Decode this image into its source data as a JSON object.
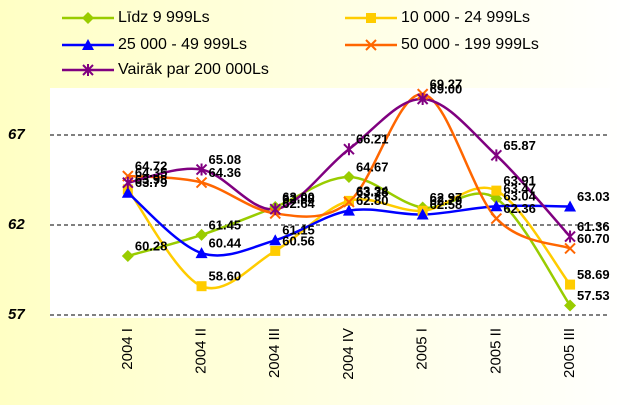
{
  "chart_data": {
    "type": "line",
    "categories": [
      "2004 I",
      "2004 II",
      "2004 III",
      "2004 IV",
      "2005 I",
      "2005 II",
      "2005 III"
    ],
    "ylim": [
      57,
      69.5
    ],
    "yticks": [
      57,
      62,
      67
    ],
    "grid": true,
    "smooth": true,
    "series": [
      {
        "name": "Līdz 9 999Ls",
        "color": "#99cc00",
        "marker": "diamond",
        "values": [
          60.28,
          61.45,
          63.0,
          64.67,
          62.97,
          63.47,
          57.53
        ],
        "value_labels": [
          "60.28",
          "61.45",
          "63.00",
          "64.67",
          "62.97",
          "63.47",
          "57.53"
        ]
      },
      {
        "name": "10 000 - 24 999Ls",
        "color": "#ffcc00",
        "marker": "square",
        "values": [
          63.98,
          58.6,
          60.56,
          63.34,
          62.79,
          63.91,
          58.69
        ],
        "value_labels": [
          "63.98",
          "58.60",
          "60.56",
          "63.34",
          "62.79",
          "63.91",
          "58.69"
        ]
      },
      {
        "name": "25 000 - 49 999Ls",
        "color": "#0000ff",
        "marker": "triangle",
        "values": [
          63.79,
          60.44,
          61.15,
          62.8,
          62.58,
          63.04,
          63.03
        ],
        "value_labels": [
          "63.79",
          "60.44",
          "61.15",
          "62.80",
          "62.58",
          "63.04",
          "63.03"
        ]
      },
      {
        "name": "50 000 - 199 999Ls",
        "color": "#ff6600",
        "marker": "x",
        "values": [
          64.72,
          64.36,
          62.64,
          63.28,
          69.27,
          62.36,
          60.7
        ],
        "value_labels": [
          "64.72",
          "64.36",
          "62.64",
          "63.28",
          "69.27",
          "62.36",
          "60.70"
        ]
      },
      {
        "name": "Vairāk par 200 000Ls",
        "color": "#800080",
        "marker": "star",
        "values": [
          64.35,
          65.08,
          62.88,
          66.21,
          69.0,
          65.87,
          61.36
        ],
        "value_labels": [
          "64.35",
          "65.08",
          "62.88",
          "66.21",
          "69.00",
          "65.87",
          "61.36"
        ]
      }
    ]
  }
}
